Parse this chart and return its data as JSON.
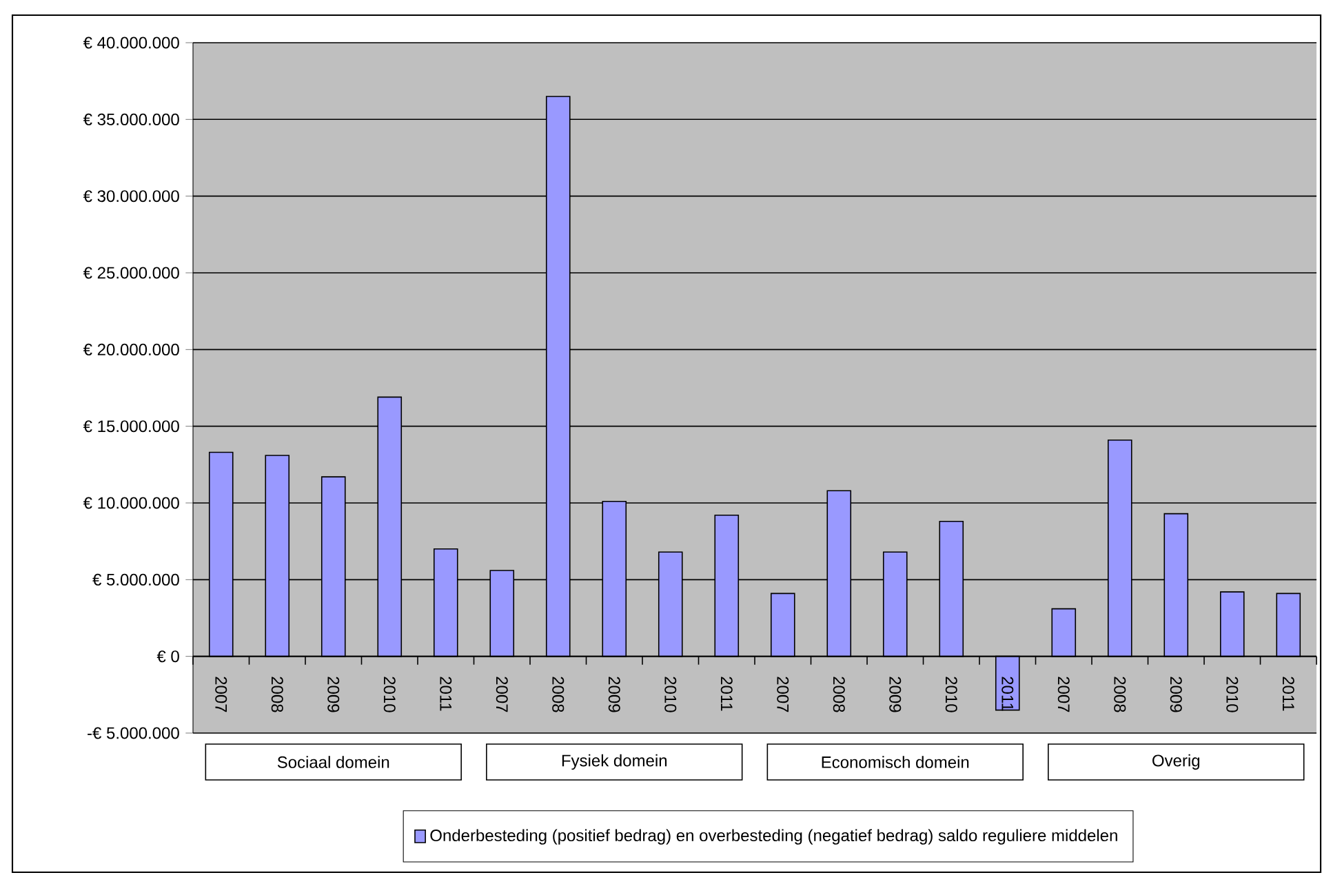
{
  "chart_data": {
    "type": "bar",
    "categories": [
      "2007",
      "2008",
      "2009",
      "2010",
      "2011",
      "2007",
      "2008",
      "2009",
      "2010",
      "2011",
      "2007",
      "2008",
      "2009",
      "2010",
      "2011",
      "2007",
      "2008",
      "2009",
      "2010",
      "2011"
    ],
    "series": [
      {
        "name": "Onderbesteding (positief bedrag) en overbesteding (negatief bedrag) saldo reguliere middelen",
        "color": "#9999ff",
        "values": [
          13300000,
          13100000,
          11700000,
          16900000,
          7000000,
          5600000,
          36500000,
          10100000,
          6800000,
          9200000,
          4100000,
          10800000,
          6800000,
          8800000,
          -3500000,
          3100000,
          14100000,
          9300000,
          4200000,
          4100000
        ]
      }
    ],
    "ylim": [
      -5000000,
      40000000
    ],
    "yticks": [
      {
        "value": -5000000,
        "label": "-€ 5.000.000"
      },
      {
        "value": 0,
        "label": "€ 0"
      },
      {
        "value": 5000000,
        "label": "€ 5.000.000"
      },
      {
        "value": 10000000,
        "label": "€ 10.000.000"
      },
      {
        "value": 15000000,
        "label": "€ 15.000.000"
      },
      {
        "value": 20000000,
        "label": "€ 20.000.000"
      },
      {
        "value": 25000000,
        "label": "€ 25.000.000"
      },
      {
        "value": 30000000,
        "label": "€ 30.000.000"
      },
      {
        "value": 35000000,
        "label": "€ 35.000.000"
      },
      {
        "value": 40000000,
        "label": "€ 40.000.000"
      }
    ],
    "grid": "y",
    "legend": "bottom",
    "annotations": [
      "Sociaal domein",
      "Fysiek domein",
      "Economisch domein",
      "Overig"
    ]
  }
}
